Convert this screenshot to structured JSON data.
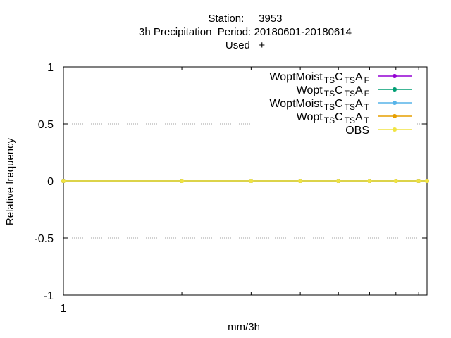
{
  "chart_data": {
    "type": "line",
    "title_lines": [
      "Station:     3953",
      "3h Precipitation  Period: 20180601-20180614",
      "Used   +"
    ],
    "xlabel": "mm/3h",
    "ylabel": "Relative frequency",
    "x_scale": "log",
    "xlim": [
      1,
      8.4
    ],
    "ylim": [
      -1,
      1
    ],
    "x_ticks": [
      1
    ],
    "y_ticks": [
      -1,
      -0.5,
      0,
      0.5,
      1
    ],
    "y_tick_labels": [
      "-1",
      "-0.5",
      "0",
      "0.5",
      "1"
    ],
    "x_tick_labels": [
      "1"
    ],
    "grid": "y-dotted",
    "legend_position": "top-right",
    "x": [
      1,
      2,
      3,
      4,
      5,
      6,
      7,
      8,
      9
    ],
    "series": [
      {
        "name_parts": [
          [
            "WoptMoist",
            ""
          ],
          [
            "TS",
            "sub"
          ],
          [
            "C",
            ""
          ],
          [
            "TS",
            "sub"
          ],
          [
            "A",
            ""
          ],
          [
            "F",
            "sub"
          ]
        ],
        "color": "#9400d3",
        "values": [
          0,
          0,
          0,
          0,
          0,
          0,
          0,
          0,
          0
        ]
      },
      {
        "name_parts": [
          [
            "Wopt",
            ""
          ],
          [
            "TS",
            "sub"
          ],
          [
            "C",
            ""
          ],
          [
            "TS",
            "sub"
          ],
          [
            "A",
            ""
          ],
          [
            "F",
            "sub"
          ]
        ],
        "color": "#009e73",
        "values": [
          0,
          0,
          0,
          0,
          0,
          0,
          0,
          0,
          0
        ]
      },
      {
        "name_parts": [
          [
            "WoptMoist",
            ""
          ],
          [
            "TS",
            "sub"
          ],
          [
            "C",
            ""
          ],
          [
            "TS",
            "sub"
          ],
          [
            "A",
            ""
          ],
          [
            "T",
            "sub"
          ]
        ],
        "color": "#56b4e9",
        "values": [
          0,
          0,
          0,
          0,
          0,
          0,
          0,
          0,
          0
        ]
      },
      {
        "name_parts": [
          [
            "Wopt",
            ""
          ],
          [
            "TS",
            "sub"
          ],
          [
            "C",
            ""
          ],
          [
            "TS",
            "sub"
          ],
          [
            "A",
            ""
          ],
          [
            "T",
            "sub"
          ]
        ],
        "color": "#e69f00",
        "values": [
          0,
          0,
          0,
          0,
          0,
          0,
          0,
          0,
          0
        ]
      },
      {
        "name_parts": [
          [
            "OBS",
            ""
          ]
        ],
        "color": "#f0e442",
        "values": [
          0,
          0,
          0,
          0,
          0,
          0,
          0,
          0,
          0
        ]
      }
    ]
  }
}
